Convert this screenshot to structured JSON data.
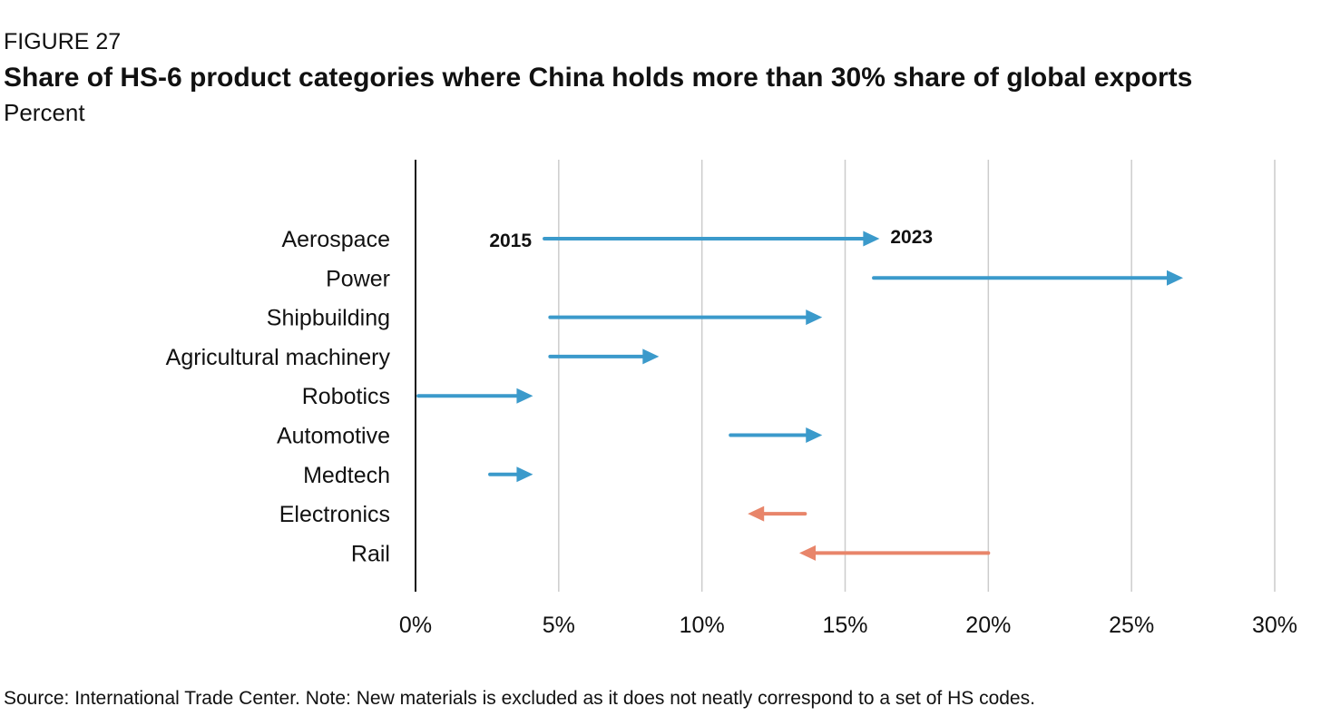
{
  "figure_label": "FIGURE 27",
  "title": "Share of HS-6 product categories where China holds more than 30% share of global exports",
  "subtitle": "Percent",
  "source": "Source: International Trade Center. Note: New materials is excluded as it does not neatly correspond to a set of HS codes.",
  "colors": {
    "increase": "#3b9acb",
    "decrease": "#e8856a",
    "grid": "#cccccc",
    "axis": "#111111"
  },
  "chart_data": {
    "type": "dumbbell-arrow",
    "xlim": [
      0,
      30
    ],
    "xticks": [
      0,
      5,
      10,
      15,
      20,
      25,
      30
    ],
    "tick_labels": [
      "0%",
      "5%",
      "10%",
      "15%",
      "20%",
      "25%",
      "30%"
    ],
    "grid": true,
    "start_label": "2015",
    "end_label": "2023",
    "categories": [
      "Aerospace",
      "Power",
      "Shipbuilding",
      "Agricultural machinery",
      "Robotics",
      "Automotive",
      "Medtech",
      "Electronics",
      "Rail"
    ],
    "series": [
      {
        "name": "2015",
        "values": [
          4.5,
          16.0,
          4.7,
          4.7,
          0.1,
          11.0,
          2.6,
          13.6,
          20.0
        ]
      },
      {
        "name": "2023",
        "values": [
          16.2,
          26.8,
          14.2,
          8.5,
          4.1,
          14.2,
          4.1,
          11.6,
          13.4
        ]
      }
    ]
  }
}
